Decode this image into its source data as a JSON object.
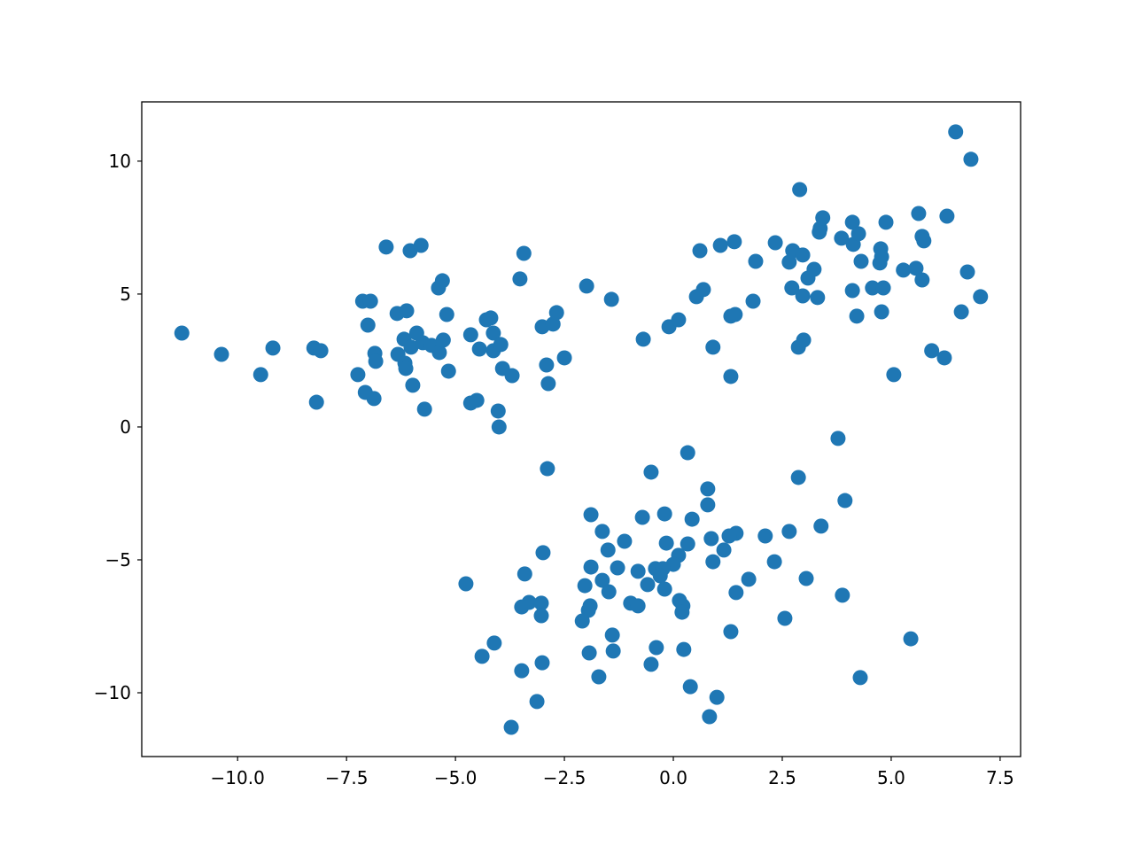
{
  "chart_data": {
    "type": "scatter",
    "title": "",
    "xlabel": "",
    "ylabel": "",
    "xlim": [
      -12.2,
      7.97
    ],
    "ylim": [
      -12.4,
      12.23
    ],
    "grid": false,
    "marker_color": "#1f77b4",
    "x_ticks": [
      {
        "value": -10,
        "label": "−10.0"
      },
      {
        "value": -7.5,
        "label": "−7.5"
      },
      {
        "value": -5,
        "label": "−5.0"
      },
      {
        "value": -2.5,
        "label": "−2.5"
      },
      {
        "value": 0,
        "label": "0.0"
      },
      {
        "value": 2.5,
        "label": "2.5"
      },
      {
        "value": 5,
        "label": "5.0"
      },
      {
        "value": 7.5,
        "label": "7.5"
      }
    ],
    "y_ticks": [
      {
        "value": -10,
        "label": "−10"
      },
      {
        "value": -5,
        "label": "−5"
      },
      {
        "value": 0,
        "label": "0"
      },
      {
        "value": 5,
        "label": "5"
      },
      {
        "value": 10,
        "label": "10"
      }
    ],
    "points": [
      [
        -11.28,
        3.53
      ],
      [
        -10.37,
        2.73
      ],
      [
        -9.47,
        1.97
      ],
      [
        -9.19,
        2.97
      ],
      [
        -8.25,
        2.97
      ],
      [
        -8.09,
        2.87
      ],
      [
        -8.19,
        0.93
      ],
      [
        -7.24,
        1.97
      ],
      [
        -7.13,
        4.73
      ],
      [
        -6.95,
        4.73
      ],
      [
        -7.01,
        3.83
      ],
      [
        -7.07,
        1.3
      ],
      [
        -6.87,
        1.07
      ],
      [
        -6.85,
        2.77
      ],
      [
        -6.83,
        2.47
      ],
      [
        -6.59,
        6.77
      ],
      [
        -6.34,
        4.27
      ],
      [
        -6.12,
        4.37
      ],
      [
        -6.32,
        2.73
      ],
      [
        -6.18,
        3.3
      ],
      [
        -6.16,
        2.4
      ],
      [
        -6.14,
        2.2
      ],
      [
        -6.04,
        6.63
      ],
      [
        -5.79,
        6.83
      ],
      [
        -5.98,
        1.57
      ],
      [
        -6.02,
        3.0
      ],
      [
        -5.89,
        3.53
      ],
      [
        -5.75,
        3.17
      ],
      [
        -5.55,
        3.07
      ],
      [
        -5.71,
        0.67
      ],
      [
        -5.39,
        5.23
      ],
      [
        -5.3,
        5.5
      ],
      [
        -5.37,
        2.8
      ],
      [
        -5.28,
        3.27
      ],
      [
        -5.2,
        4.23
      ],
      [
        -5.16,
        2.1
      ],
      [
        -4.65,
        3.47
      ],
      [
        -4.65,
        0.9
      ],
      [
        -4.51,
        1.0
      ],
      [
        -4.45,
        2.93
      ],
      [
        -4.29,
        4.03
      ],
      [
        -4.19,
        4.1
      ],
      [
        -4.13,
        3.53
      ],
      [
        -4.13,
        2.87
      ],
      [
        -4.02,
        0.6
      ],
      [
        -4.0,
        0.0
      ],
      [
        -3.96,
        3.1
      ],
      [
        -3.92,
        2.2
      ],
      [
        -3.7,
        1.93
      ],
      [
        -3.52,
        5.57
      ],
      [
        -3.43,
        6.53
      ],
      [
        -3.01,
        3.77
      ],
      [
        -2.91,
        2.33
      ],
      [
        -2.87,
        1.63
      ],
      [
        -2.76,
        3.87
      ],
      [
        -2.68,
        4.3
      ],
      [
        -2.5,
        2.6
      ],
      [
        -1.99,
        5.3
      ],
      [
        -1.42,
        4.8
      ],
      [
        -2.89,
        -1.57
      ],
      [
        -0.69,
        3.3
      ],
      [
        -0.1,
        3.77
      ],
      [
        0.12,
        4.03
      ],
      [
        0.53,
        4.9
      ],
      [
        0.69,
        5.17
      ],
      [
        0.61,
        6.63
      ],
      [
        0.91,
        3.0
      ],
      [
        1.08,
        6.83
      ],
      [
        1.4,
        6.97
      ],
      [
        1.32,
        4.17
      ],
      [
        1.42,
        4.23
      ],
      [
        1.32,
        1.9
      ],
      [
        1.83,
        4.73
      ],
      [
        1.89,
        6.23
      ],
      [
        2.34,
        6.93
      ],
      [
        2.66,
        6.2
      ],
      [
        2.74,
        6.63
      ],
      [
        2.72,
        5.23
      ],
      [
        2.9,
        8.93
      ],
      [
        2.97,
        6.47
      ],
      [
        2.97,
        4.93
      ],
      [
        2.87,
        3.0
      ],
      [
        2.99,
        3.27
      ],
      [
        3.09,
        5.6
      ],
      [
        3.23,
        5.93
      ],
      [
        3.31,
        4.87
      ],
      [
        3.35,
        7.33
      ],
      [
        3.37,
        7.47
      ],
      [
        3.43,
        7.87
      ],
      [
        3.86,
        7.1
      ],
      [
        4.11,
        7.7
      ],
      [
        4.13,
        6.87
      ],
      [
        4.25,
        7.27
      ],
      [
        4.11,
        5.13
      ],
      [
        4.21,
        4.17
      ],
      [
        4.31,
        6.23
      ],
      [
        4.57,
        5.23
      ],
      [
        4.74,
        6.17
      ],
      [
        4.76,
        6.7
      ],
      [
        4.78,
        6.4
      ],
      [
        4.82,
        5.23
      ],
      [
        4.78,
        4.33
      ],
      [
        4.88,
        7.7
      ],
      [
        5.06,
        1.97
      ],
      [
        5.28,
        5.9
      ],
      [
        5.57,
        5.97
      ],
      [
        5.63,
        8.03
      ],
      [
        5.71,
        7.17
      ],
      [
        5.75,
        7.0
      ],
      [
        5.71,
        5.53
      ],
      [
        5.93,
        2.87
      ],
      [
        6.22,
        2.6
      ],
      [
        6.28,
        7.93
      ],
      [
        6.48,
        11.1
      ],
      [
        6.61,
        4.33
      ],
      [
        6.75,
        5.83
      ],
      [
        6.83,
        10.07
      ],
      [
        7.05,
        4.9
      ],
      [
        3.78,
        -0.43
      ],
      [
        0.33,
        -0.97
      ],
      [
        -0.51,
        -1.7
      ],
      [
        2.87,
        -1.9
      ],
      [
        0.79,
        -2.33
      ],
      [
        3.94,
        -2.77
      ],
      [
        0.79,
        -2.93
      ],
      [
        -1.89,
        -3.3
      ],
      [
        -0.71,
        -3.4
      ],
      [
        -0.2,
        -3.27
      ],
      [
        0.43,
        -3.47
      ],
      [
        3.39,
        -3.73
      ],
      [
        -1.63,
        -3.93
      ],
      [
        2.66,
        -3.93
      ],
      [
        1.44,
        -4.0
      ],
      [
        0.87,
        -4.2
      ],
      [
        1.28,
        -4.1
      ],
      [
        2.11,
        -4.1
      ],
      [
        -1.12,
        -4.3
      ],
      [
        -0.16,
        -4.37
      ],
      [
        0.33,
        -4.4
      ],
      [
        1.16,
        -4.63
      ],
      [
        -1.5,
        -4.63
      ],
      [
        -2.99,
        -4.73
      ],
      [
        0.12,
        -4.83
      ],
      [
        0.91,
        -5.07
      ],
      [
        2.32,
        -5.07
      ],
      [
        0.0,
        -5.17
      ],
      [
        -1.89,
        -5.27
      ],
      [
        -1.28,
        -5.3
      ],
      [
        -0.41,
        -5.33
      ],
      [
        -0.24,
        -5.33
      ],
      [
        -0.81,
        -5.43
      ],
      [
        -3.41,
        -5.53
      ],
      [
        -0.59,
        -5.93
      ],
      [
        -0.3,
        -5.6
      ],
      [
        -1.63,
        -5.77
      ],
      [
        3.05,
        -5.7
      ],
      [
        1.73,
        -5.73
      ],
      [
        -2.03,
        -5.97
      ],
      [
        -4.76,
        -5.9
      ],
      [
        -0.2,
        -6.1
      ],
      [
        -1.48,
        -6.2
      ],
      [
        1.44,
        -6.23
      ],
      [
        3.88,
        -6.33
      ],
      [
        0.14,
        -6.53
      ],
      [
        0.22,
        -6.73
      ],
      [
        0.2,
        -6.97
      ],
      [
        -3.31,
        -6.6
      ],
      [
        -3.48,
        -6.77
      ],
      [
        -3.03,
        -6.63
      ],
      [
        -1.91,
        -6.73
      ],
      [
        -1.95,
        -6.9
      ],
      [
        -0.98,
        -6.63
      ],
      [
        -0.81,
        -6.73
      ],
      [
        -3.03,
        -7.1
      ],
      [
        -2.09,
        -7.3
      ],
      [
        2.56,
        -7.2
      ],
      [
        -1.4,
        -7.83
      ],
      [
        1.32,
        -7.7
      ],
      [
        5.45,
        -7.97
      ],
      [
        -4.11,
        -8.13
      ],
      [
        -0.39,
        -8.3
      ],
      [
        0.24,
        -8.37
      ],
      [
        -4.39,
        -8.63
      ],
      [
        -1.93,
        -8.5
      ],
      [
        -1.38,
        -8.43
      ],
      [
        -3.01,
        -8.87
      ],
      [
        -0.51,
        -8.93
      ],
      [
        -3.48,
        -9.17
      ],
      [
        -1.71,
        -9.4
      ],
      [
        4.29,
        -9.43
      ],
      [
        0.39,
        -9.77
      ],
      [
        1.0,
        -10.17
      ],
      [
        -3.13,
        -10.33
      ],
      [
        0.83,
        -10.9
      ],
      [
        -3.72,
        -11.3
      ]
    ]
  }
}
